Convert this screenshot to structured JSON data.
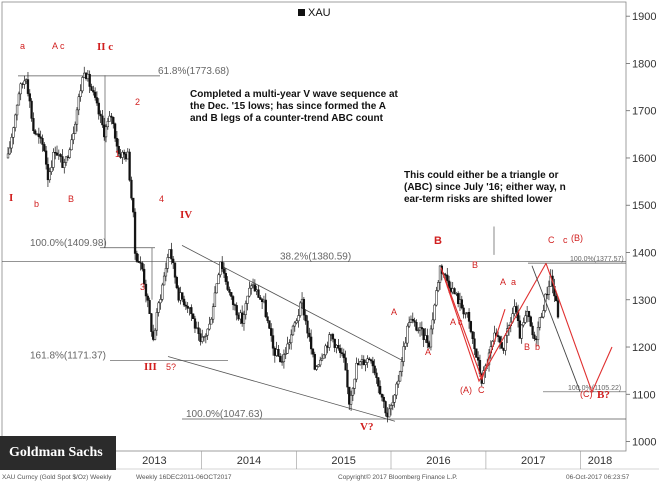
{
  "chart_data": {
    "type": "line",
    "style": "candlestick",
    "legend": {
      "label": "XAU",
      "position": "top-center"
    },
    "y_axis": {
      "side": "right",
      "ticks": [
        1000,
        1100,
        1200,
        1300,
        1400,
        1500,
        1600,
        1700,
        1800,
        1900
      ],
      "ylim": [
        980,
        1930
      ]
    },
    "x_axis": {
      "ticks": [
        "2013",
        "2014",
        "2015",
        "2016",
        "2017",
        "2018"
      ],
      "range": [
        "2011-12-16",
        "2017-10-06"
      ]
    },
    "grid": false,
    "footer": {
      "left": "XAU Curncy (Gold Spot  $/Oz) Weekly",
      "middle": "Weekly 16DEC2011-06OCT2017",
      "center": "Copyright© 2017 Bloomberg Finance L.P.",
      "right": "06-Oct-2017 06:23:57"
    },
    "series": [
      {
        "values": [
          [
            "2011-12-16",
            1600
          ],
          [
            "2012-01-27",
            1740
          ],
          [
            "2012-02-24",
            1775
          ],
          [
            "2012-03-23",
            1660
          ],
          [
            "2012-05-04",
            1620
          ],
          [
            "2012-05-18",
            1560
          ],
          [
            "2012-06-15",
            1620
          ],
          [
            "2012-07-20",
            1580
          ],
          [
            "2012-08-24",
            1660
          ],
          [
            "2012-10-05",
            1790
          ],
          [
            "2012-11-16",
            1720
          ],
          [
            "2012-12-21",
            1655
          ],
          [
            "2013-01-18",
            1690
          ],
          [
            "2013-02-15",
            1610
          ],
          [
            "2013-03-22",
            1605
          ],
          [
            "2013-04-12",
            1475
          ],
          [
            "2013-04-19",
            1400
          ],
          [
            "2013-05-17",
            1365
          ],
          [
            "2013-06-28",
            1215
          ],
          [
            "2013-07-19",
            1290
          ],
          [
            "2013-08-30",
            1410
          ],
          [
            "2013-10-04",
            1310
          ],
          [
            "2013-11-15",
            1285
          ],
          [
            "2013-12-27",
            1205
          ],
          [
            "2014-01-31",
            1245
          ],
          [
            "2014-03-14",
            1385
          ],
          [
            "2014-04-25",
            1300
          ],
          [
            "2014-06-06",
            1255
          ],
          [
            "2014-07-11",
            1335
          ],
          [
            "2014-08-29",
            1290
          ],
          [
            "2014-10-03",
            1195
          ],
          [
            "2014-11-07",
            1170
          ],
          [
            "2014-12-12",
            1225
          ],
          [
            "2015-01-23",
            1295
          ],
          [
            "2015-03-13",
            1155
          ],
          [
            "2015-05-15",
            1225
          ],
          [
            "2015-07-03",
            1170
          ],
          [
            "2015-07-24",
            1085
          ],
          [
            "2015-08-21",
            1160
          ],
          [
            "2015-10-16",
            1180
          ],
          [
            "2015-12-18",
            1055
          ],
          [
            "2016-01-15",
            1090
          ],
          [
            "2016-03-11",
            1260
          ],
          [
            "2016-05-27",
            1210
          ],
          [
            "2016-07-08",
            1370
          ],
          [
            "2016-08-26",
            1320
          ],
          [
            "2016-10-21",
            1265
          ],
          [
            "2016-12-16",
            1130
          ],
          [
            "2017-02-03",
            1220
          ],
          [
            "2017-03-10",
            1200
          ],
          [
            "2017-04-21",
            1285
          ],
          [
            "2017-05-12",
            1225
          ],
          [
            "2017-06-09",
            1270
          ],
          [
            "2017-07-07",
            1210
          ],
          [
            "2017-09-08",
            1350
          ],
          [
            "2017-10-06",
            1270
          ]
        ]
      }
    ],
    "annotations": [
      {
        "text": "61.8%(1773.68)",
        "kind": "level"
      },
      {
        "text": "100.0%(1409.98)",
        "kind": "level"
      },
      {
        "text": "38.2%(1380.59)",
        "kind": "level"
      },
      {
        "text": "161.8%(1171.37)",
        "kind": "level"
      },
      {
        "text": "100.0%(1047.63)",
        "kind": "level"
      },
      {
        "text": "100.0%(1377.57)",
        "kind": "level"
      },
      {
        "text": "100.0%(1105.22)",
        "kind": "level"
      },
      {
        "text": "Completed a multi-year V wave sequence at the Dec. '15 lows; has since formed the A and B legs of a counter-trend ABC count",
        "kind": "note"
      },
      {
        "text": "This could either be a triangle or (ABC) since July '16; either way, near-term risks are shifted lower",
        "kind": "note"
      },
      {
        "text": "I",
        "kind": "wave"
      },
      {
        "text": "a",
        "kind": "wave"
      },
      {
        "text": "b",
        "kind": "wave"
      },
      {
        "text": "A c",
        "kind": "wave"
      },
      {
        "text": "B",
        "kind": "wave"
      },
      {
        "text": "II c",
        "kind": "wave"
      },
      {
        "text": "1",
        "kind": "wave"
      },
      {
        "text": "2",
        "kind": "wave"
      },
      {
        "text": "3",
        "kind": "wave"
      },
      {
        "text": "4",
        "kind": "wave"
      },
      {
        "text": "IV",
        "kind": "wave"
      },
      {
        "text": "III",
        "kind": "wave"
      },
      {
        "text": "5?",
        "kind": "wave"
      },
      {
        "text": "V?",
        "kind": "wave"
      },
      {
        "text": "A",
        "kind": "wave"
      },
      {
        "text": "A",
        "kind": "wave"
      },
      {
        "text": "B",
        "kind": "wave"
      },
      {
        "text": "A c",
        "kind": "wave"
      },
      {
        "text": "B",
        "kind": "wave"
      },
      {
        "text": "(A)",
        "kind": "wave"
      },
      {
        "text": "C",
        "kind": "wave"
      },
      {
        "text": "A",
        "kind": "wave"
      },
      {
        "text": "a",
        "kind": "wave"
      },
      {
        "text": "B",
        "kind": "wave"
      },
      {
        "text": "b",
        "kind": "wave"
      },
      {
        "text": "C",
        "kind": "wave"
      },
      {
        "text": "c",
        "kind": "wave"
      },
      {
        "text": "(B)",
        "kind": "wave"
      },
      {
        "text": "(C)",
        "kind": "wave"
      },
      {
        "text": "B?",
        "kind": "wave"
      }
    ]
  },
  "branding": {
    "logo_text": "Goldman Sachs"
  },
  "colors": {
    "price": "#111111",
    "annotation_red": "#d11f1f",
    "axis_text": "#333333",
    "scenario": "#e03030"
  }
}
